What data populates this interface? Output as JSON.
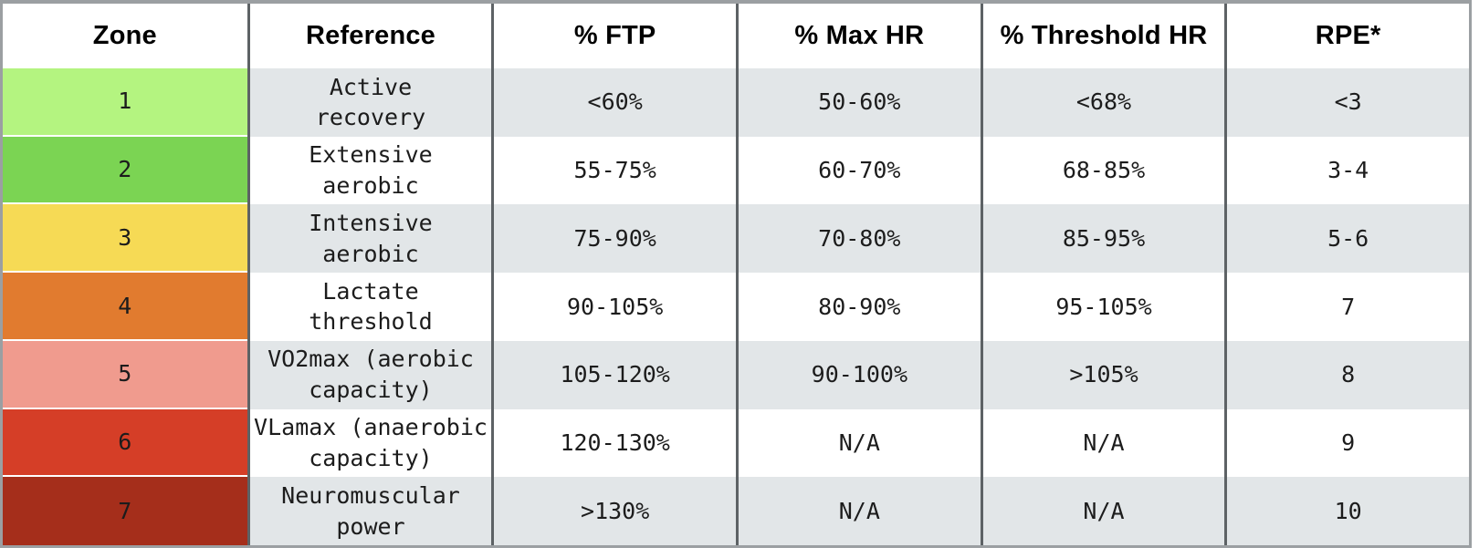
{
  "table": {
    "columns": [
      "Zone",
      "Reference",
      "% FTP",
      "% Max HR",
      "% Threshold HR",
      "RPE*"
    ],
    "rows": [
      {
        "zone": "1",
        "zone_color": "#b4f480",
        "reference": "Active\nrecovery",
        "ftp": "<60%",
        "max_hr": "50-60%",
        "threshold_hr": "<68%",
        "rpe": "<3"
      },
      {
        "zone": "2",
        "zone_color": "#7bd453",
        "reference": "Extensive\naerobic",
        "ftp": "55-75%",
        "max_hr": "60-70%",
        "threshold_hr": "68-85%",
        "rpe": "3-4"
      },
      {
        "zone": "3",
        "zone_color": "#f6da55",
        "reference": "Intensive\naerobic",
        "ftp": "75-90%",
        "max_hr": "70-80%",
        "threshold_hr": "85-95%",
        "rpe": "5-6"
      },
      {
        "zone": "4",
        "zone_color": "#e17b2f",
        "reference": "Lactate\nthreshold",
        "ftp": "90-105%",
        "max_hr": "80-90%",
        "threshold_hr": "95-105%",
        "rpe": "7"
      },
      {
        "zone": "5",
        "zone_color": "#f09b8e",
        "reference": "VO2max (aerobic\ncapacity)",
        "ftp": "105-120%",
        "max_hr": "90-100%",
        "threshold_hr": ">105%",
        "rpe": "8"
      },
      {
        "zone": "6",
        "zone_color": "#d53e27",
        "reference": "VLamax (anaerobic\ncapacity)",
        "ftp": "120-130%",
        "max_hr": "N/A",
        "threshold_hr": "N/A",
        "rpe": "9"
      },
      {
        "zone": "7",
        "zone_color": "#a52e1b",
        "reference": "Neuromuscular\npower",
        "ftp": ">130%",
        "max_hr": "N/A",
        "threshold_hr": "N/A",
        "rpe": "10"
      }
    ],
    "colors": {
      "stripe": "#e2e6e8",
      "column_border": "#5d6265",
      "outer_border": "#9b9fa2",
      "header_text": "#000000",
      "body_text": "#1c1c1c"
    }
  }
}
